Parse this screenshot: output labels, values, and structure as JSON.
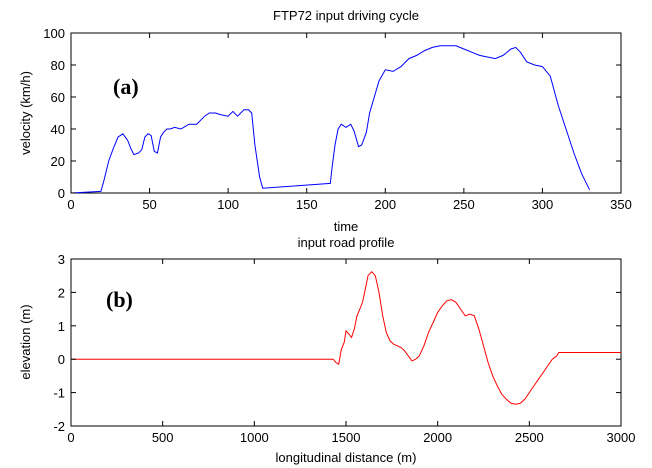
{
  "chart_data": [
    {
      "type": "line",
      "title": "FTP72 input driving cycle",
      "xlabel": "time",
      "ylabel": "velocity (km/h)",
      "panel_label": "(a)",
      "xlim": [
        0,
        350
      ],
      "ylim": [
        0,
        100
      ],
      "xticks": [
        0,
        50,
        100,
        150,
        200,
        250,
        300,
        350
      ],
      "yticks": [
        0,
        20,
        40,
        60,
        80,
        100
      ],
      "grid": false,
      "series": [
        {
          "color": "#0000ff",
          "x": [
            0,
            19,
            21,
            24,
            27,
            30,
            33,
            36,
            38,
            40,
            43,
            45,
            47,
            49,
            51,
            53,
            55,
            57,
            59,
            61,
            63,
            66,
            70,
            75,
            80,
            85,
            88,
            92,
            95,
            100,
            103,
            106,
            110,
            113,
            115,
            117,
            120,
            122,
            165,
            166,
            168,
            170,
            172,
            175,
            178,
            180,
            183,
            185,
            188,
            190,
            193,
            196,
            200,
            205,
            210,
            215,
            220,
            225,
            230,
            235,
            240,
            245,
            250,
            255,
            260,
            265,
            270,
            275,
            280,
            283,
            286,
            290,
            295,
            300,
            305,
            310,
            315,
            320,
            325,
            330
          ],
          "y": [
            0,
            1,
            8,
            20,
            28,
            35,
            37,
            33,
            28,
            24,
            25,
            27,
            35,
            37,
            36,
            26,
            25,
            35,
            38,
            40,
            40,
            41,
            40,
            43,
            43,
            48,
            50,
            50,
            49,
            48,
            51,
            48,
            52,
            52,
            50,
            30,
            10,
            3,
            6,
            15,
            30,
            40,
            43,
            41,
            43,
            39,
            29,
            30,
            38,
            50,
            60,
            70,
            77,
            76,
            79,
            84,
            86,
            89,
            91,
            92,
            92,
            92,
            90,
            88,
            86,
            85,
            84,
            86,
            90,
            91,
            88,
            82,
            80,
            79,
            73,
            55,
            40,
            25,
            12,
            2
          ]
        }
      ]
    },
    {
      "type": "line",
      "title": "input road profile",
      "xlabel": "longitudinal distance (m)",
      "ylabel": "elevation (m)",
      "panel_label": "(b)",
      "xlim": [
        0,
        3000
      ],
      "ylim": [
        -2,
        3
      ],
      "xticks": [
        0,
        500,
        1000,
        1500,
        2000,
        2500,
        3000
      ],
      "yticks": [
        -2,
        -1,
        0,
        1,
        2,
        3
      ],
      "grid": false,
      "series": [
        {
          "color": "#ff0000",
          "x": [
            0,
            1430,
            1445,
            1460,
            1475,
            1490,
            1500,
            1515,
            1530,
            1545,
            1560,
            1575,
            1590,
            1605,
            1620,
            1640,
            1660,
            1680,
            1700,
            1720,
            1740,
            1760,
            1780,
            1800,
            1820,
            1840,
            1860,
            1880,
            1900,
            1925,
            1950,
            1975,
            2000,
            2025,
            2050,
            2075,
            2100,
            2125,
            2150,
            2175,
            2200,
            2225,
            2250,
            2275,
            2300,
            2325,
            2350,
            2375,
            2400,
            2425,
            2450,
            2475,
            2500,
            2525,
            2550,
            2575,
            2600,
            2625,
            2650,
            2660,
            3000
          ],
          "y": [
            0,
            0,
            -0.1,
            -0.15,
            0.3,
            0.5,
            0.85,
            0.75,
            0.65,
            0.9,
            1.3,
            1.5,
            1.7,
            2.1,
            2.5,
            2.62,
            2.5,
            2.0,
            1.3,
            0.8,
            0.55,
            0.45,
            0.4,
            0.35,
            0.25,
            0.1,
            -0.05,
            0,
            0.1,
            0.4,
            0.8,
            1.1,
            1.4,
            1.6,
            1.75,
            1.78,
            1.7,
            1.5,
            1.3,
            1.35,
            1.3,
            0.9,
            0.4,
            -0.1,
            -0.5,
            -0.8,
            -1.05,
            -1.2,
            -1.32,
            -1.35,
            -1.32,
            -1.2,
            -1.0,
            -0.8,
            -0.6,
            -0.4,
            -0.2,
            0.0,
            0.1,
            0.2,
            0.2
          ]
        }
      ]
    }
  ]
}
